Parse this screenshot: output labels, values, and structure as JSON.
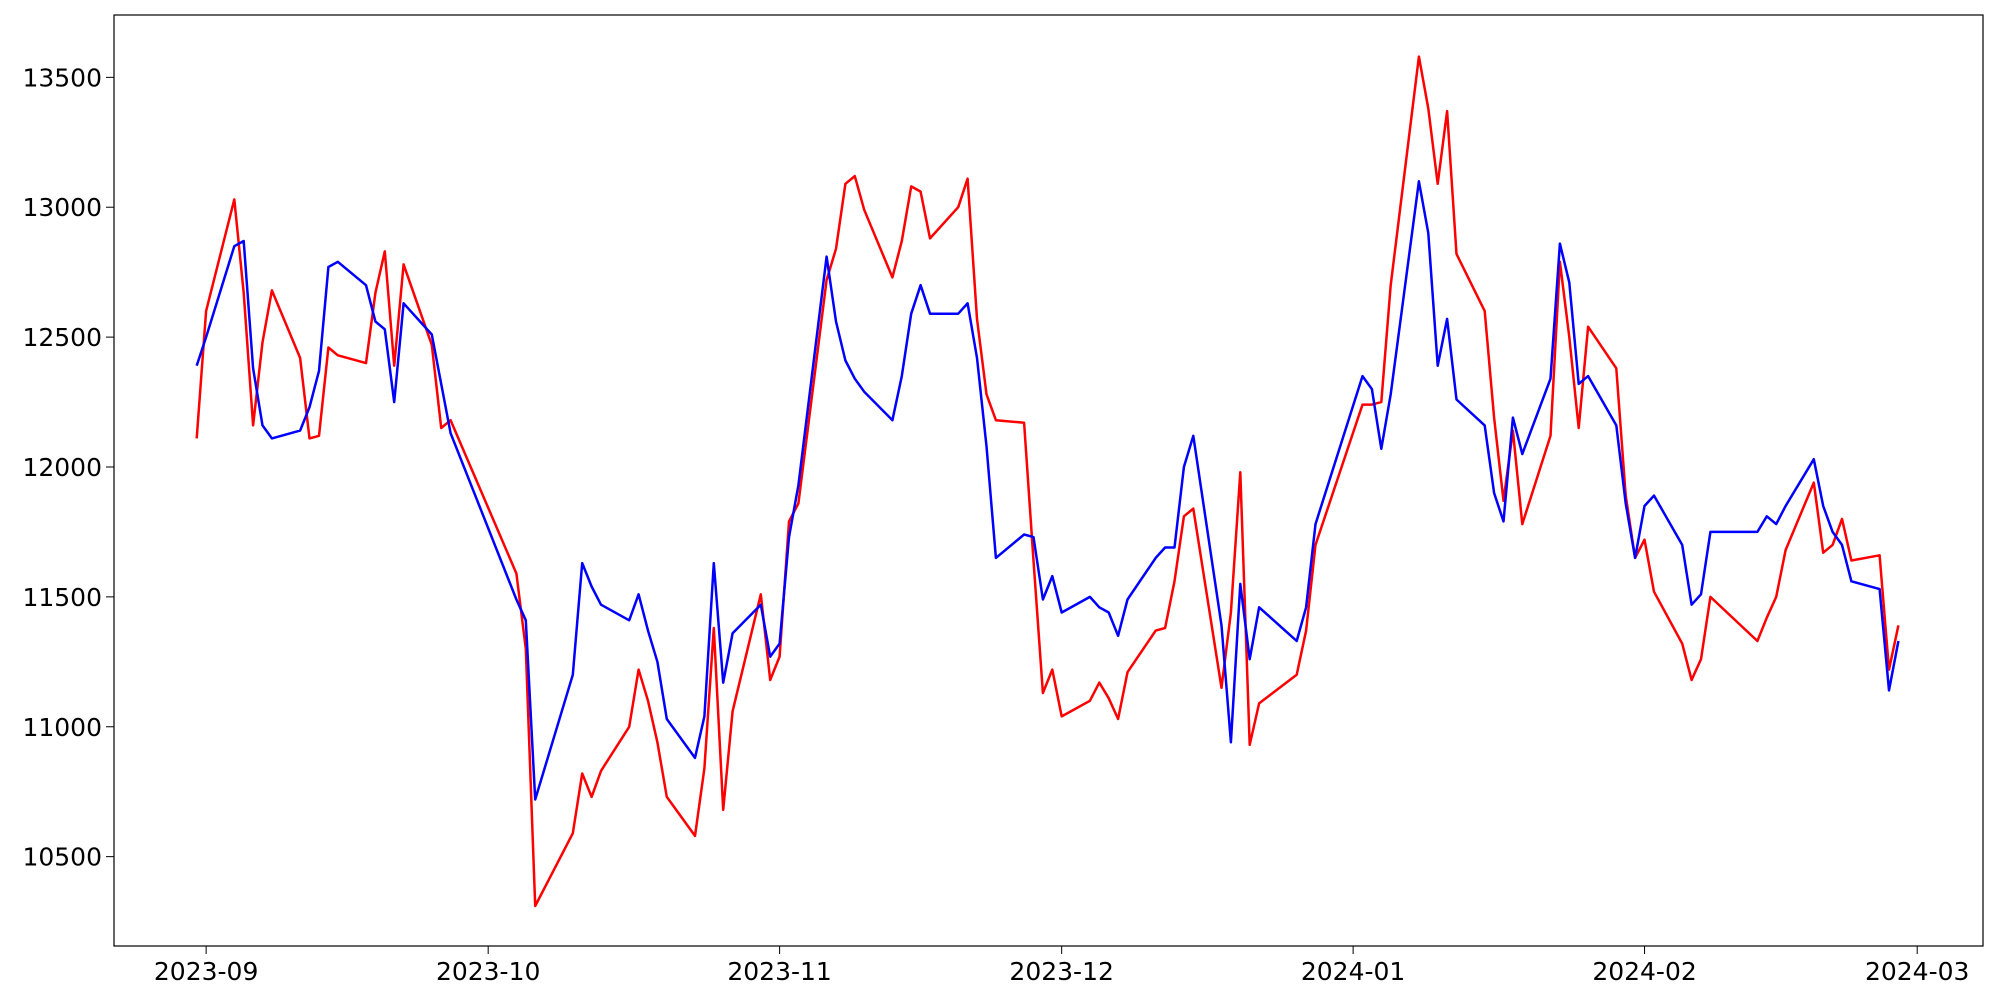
{
  "chart_data": {
    "type": "line",
    "x": [
      19600,
      19601,
      19604,
      19605,
      19606,
      19607,
      19608,
      19611,
      19612,
      19613,
      19614,
      19615,
      19618,
      19619,
      19620,
      19621,
      19622,
      19625,
      19626,
      19627,
      19634,
      19635,
      19636,
      19640,
      19641,
      19642,
      19643,
      19646,
      19647,
      19648,
      19649,
      19650,
      19653,
      19654,
      19655,
      19656,
      19657,
      19660,
      19661,
      19662,
      19663,
      19664,
      19667,
      19668,
      19669,
      19670,
      19671,
      19674,
      19675,
      19676,
      19677,
      19678,
      19681,
      19682,
      19683,
      19684,
      19685,
      19688,
      19689,
      19690,
      19691,
      19692,
      19695,
      19696,
      19697,
      19698,
      19699,
      19702,
      19703,
      19704,
      19705,
      19706,
      19709,
      19710,
      19711,
      19712,
      19713,
      19717,
      19718,
      19719,
      19724,
      19725,
      19726,
      19727,
      19730,
      19731,
      19732,
      19733,
      19734,
      19737,
      19738,
      19739,
      19740,
      19741,
      19744,
      19745,
      19746,
      19747,
      19748,
      19751,
      19752,
      19753,
      19754,
      19755,
      19758,
      19759,
      19760,
      19761,
      19766,
      19767,
      19768,
      19769,
      19772,
      19773,
      19774,
      19775,
      19776,
      19779,
      19780,
      19781
    ],
    "series": [
      {
        "color": "#ff0000",
        "values": [
          12110,
          12600,
          13030,
          12670,
          12160,
          12480,
          12680,
          12420,
          12110,
          12120,
          12460,
          12430,
          12400,
          12670,
          12830,
          12390,
          12780,
          12470,
          12150,
          12180,
          11590,
          11300,
          10310,
          10590,
          10820,
          10730,
          10830,
          11000,
          11220,
          11100,
          10940,
          10730,
          10580,
          10840,
          11380,
          10680,
          11060,
          11510,
          11180,
          11270,
          11790,
          11860,
          12720,
          12840,
          13090,
          13120,
          12990,
          12730,
          12870,
          13080,
          13060,
          12880,
          13000,
          13110,
          12570,
          12280,
          12180,
          12170,
          11640,
          11130,
          11220,
          11040,
          11100,
          11170,
          11110,
          11030,
          11210,
          11370,
          11380,
          11560,
          11810,
          11840,
          11150,
          11440,
          11980,
          10930,
          11090,
          11200,
          11370,
          11700,
          12240,
          12240,
          12250,
          12700,
          13580,
          13380,
          13090,
          13370,
          12820,
          12600,
          12190,
          11870,
          12140,
          11780,
          12120,
          12790,
          12500,
          12150,
          12540,
          12380,
          11890,
          11650,
          11720,
          11520,
          11320,
          11180,
          11260,
          11500,
          11330,
          11420,
          11500,
          11680,
          11940,
          11670,
          11700,
          11800,
          11640,
          11660,
          11220,
          11390
        ]
      },
      {
        "color": "#0000ff",
        "values": [
          12390,
          12500,
          12850,
          12870,
          12380,
          12160,
          12110,
          12140,
          12230,
          12370,
          12770,
          12790,
          12700,
          12560,
          12530,
          12250,
          12630,
          12510,
          12320,
          12130,
          11490,
          11410,
          10720,
          11200,
          11630,
          11540,
          11470,
          11410,
          11510,
          11370,
          11250,
          11030,
          10880,
          11040,
          11630,
          11170,
          11360,
          11470,
          11270,
          11320,
          11730,
          11930,
          12810,
          12560,
          12410,
          12340,
          12290,
          12180,
          12350,
          12590,
          12700,
          12590,
          12590,
          12630,
          12420,
          12080,
          11650,
          11740,
          11730,
          11490,
          11580,
          11440,
          11500,
          11460,
          11440,
          11350,
          11490,
          11650,
          11690,
          11690,
          12000,
          12120,
          11390,
          10940,
          11550,
          11260,
          11460,
          11330,
          11460,
          11780,
          12350,
          12300,
          12070,
          12280,
          13100,
          12900,
          12390,
          12570,
          12260,
          12160,
          11900,
          11790,
          12190,
          12050,
          12340,
          12860,
          12710,
          12320,
          12350,
          12160,
          11860,
          11650,
          11850,
          11890,
          11700,
          11470,
          11510,
          11750,
          11750,
          11810,
          11780,
          11850,
          12030,
          11850,
          11750,
          11700,
          11560,
          11530,
          11140,
          11330
        ]
      }
    ],
    "xlim": [
      19591.2,
      19790.0
    ],
    "xticks": [
      {
        "value": 19601,
        "label": "2023-09"
      },
      {
        "value": 19631,
        "label": "2023-10"
      },
      {
        "value": 19662,
        "label": "2023-11"
      },
      {
        "value": 19692,
        "label": "2023-12"
      },
      {
        "value": 19723,
        "label": "2024-01"
      },
      {
        "value": 19754,
        "label": "2024-02"
      },
      {
        "value": 19783,
        "label": "2024-03"
      }
    ],
    "ylim": [
      10156,
      13740
    ],
    "yticks": [
      10500,
      11000,
      11500,
      12000,
      12500,
      13000,
      13500
    ]
  }
}
